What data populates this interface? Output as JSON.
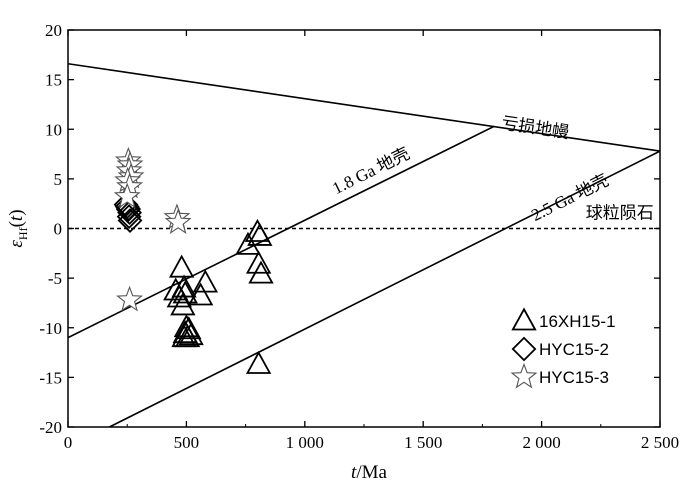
{
  "chart_data": {
    "type": "scatter",
    "xlabel": "t/Ma",
    "ylabel": "εHf(t)",
    "xlim": [
      0,
      2500
    ],
    "ylim": [
      -20,
      20
    ],
    "x_ticks": [
      0,
      500,
      1000,
      1500,
      2000,
      2500
    ],
    "x_tick_labels": [
      "0",
      "500",
      "1 000",
      "1 500",
      "2 000",
      "2 500"
    ],
    "y_ticks": [
      -20,
      -15,
      -10,
      -5,
      0,
      5,
      10,
      15,
      20
    ],
    "y_tick_labels": [
      "-20",
      "-15",
      "-10",
      "-5",
      "0",
      "5",
      "10",
      "15",
      "20"
    ],
    "reference_lines": [
      {
        "name": "亏损地幔",
        "points": [
          [
            0,
            16.6
          ],
          [
            2500,
            7.8
          ]
        ],
        "style": "solid"
      },
      {
        "name": "1.8 Ga 地壳",
        "points": [
          [
            0,
            -11
          ],
          [
            1800,
            10.3
          ]
        ],
        "style": "solid"
      },
      {
        "name": "2.5 Ga 地壳",
        "points": [
          [
            175,
            -20
          ],
          [
            2500,
            7.8
          ]
        ],
        "style": "solid"
      },
      {
        "name": "球粒陨石",
        "points": [
          [
            0,
            0
          ],
          [
            2500,
            0
          ]
        ],
        "style": "dashed"
      }
    ],
    "series": [
      {
        "name": "16XH15-1",
        "marker": "triangle",
        "points": [
          [
            455,
            -6.3
          ],
          [
            470,
            -7.0
          ],
          [
            480,
            -4.0
          ],
          [
            490,
            -6.0
          ],
          [
            485,
            -7.8
          ],
          [
            495,
            -6.6
          ],
          [
            500,
            -10.0
          ],
          [
            505,
            -11.0
          ],
          [
            495,
            -10.6
          ],
          [
            510,
            -10.2
          ],
          [
            490,
            -11.0
          ],
          [
            520,
            -10.8
          ],
          [
            560,
            -6.8
          ],
          [
            580,
            -5.5
          ],
          [
            760,
            -1.7
          ],
          [
            800,
            -0.4
          ],
          [
            810,
            -0.8
          ],
          [
            805,
            -3.6
          ],
          [
            815,
            -4.6
          ],
          [
            805,
            -13.7
          ]
        ]
      },
      {
        "name": "HYC15-2",
        "marker": "diamond",
        "points": [
          [
            245,
            2.4
          ],
          [
            255,
            2.0
          ],
          [
            260,
            1.6
          ],
          [
            258,
            1.2
          ],
          [
            262,
            0.8
          ],
          [
            255,
            1.9
          ],
          [
            250,
            2.2
          ]
        ]
      },
      {
        "name": "HYC15-3",
        "marker": "star",
        "points": [
          [
            255,
            6.8
          ],
          [
            262,
            6.4
          ],
          [
            258,
            5.8
          ],
          [
            266,
            5.2
          ],
          [
            252,
            4.8
          ],
          [
            260,
            4.2
          ],
          [
            250,
            3.2
          ],
          [
            460,
            1.1
          ],
          [
            465,
            0.6
          ],
          [
            260,
            -7.2
          ]
        ]
      }
    ],
    "legend_position": "bottom-right"
  }
}
